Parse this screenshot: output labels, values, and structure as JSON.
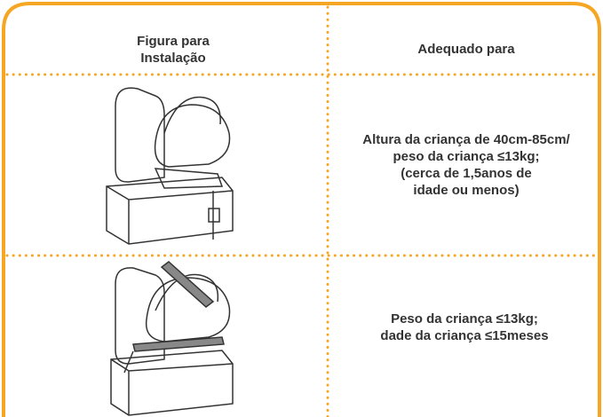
{
  "table": {
    "header": [
      [
        "Figura para",
        "Instalação"
      ],
      [
        "Adequado para"
      ]
    ],
    "rows": [
      [
        "Altura da criança de 40cm-85cm/",
        "peso da criança ≤13kg;",
        "(cerca de 1,5anos de",
        "idade ou menos)"
      ],
      [
        "Peso da criança ≤13kg;",
        "dade da criança ≤15meses"
      ]
    ]
  }
}
